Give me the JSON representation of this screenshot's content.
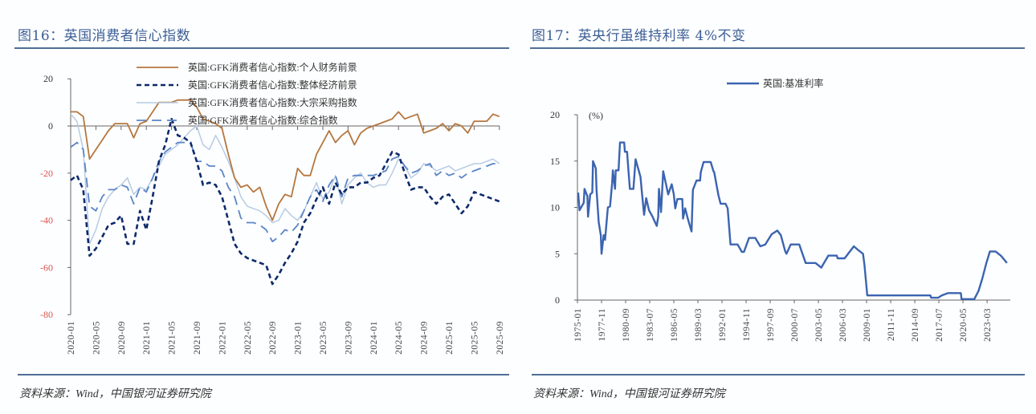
{
  "left": {
    "title": "图16：英国消费者信心指数",
    "source": "资料来源：Wind，中国银河证券研究院"
  },
  "right": {
    "title": "图17：英央行虽维持利率 4%不变",
    "source": "资料来源：Wind，中国银河证券研究院"
  },
  "chart_data": [
    {
      "type": "line",
      "title": "图16：英国消费者信心指数",
      "ylim": [
        -80,
        20
      ],
      "yticks": [
        "20",
        "0",
        "-20",
        "-40",
        "-60",
        "-80"
      ],
      "xticks": [
        "2020-01",
        "2020-05",
        "2020-09",
        "2021-01",
        "2021-05",
        "2021-09",
        "2022-01",
        "2022-05",
        "2022-09",
        "2023-01",
        "2023-05",
        "2023-09",
        "2024-01",
        "2024-05",
        "2024-09",
        "2025-01",
        "2025-05",
        "2025-09"
      ],
      "legend_position": "top",
      "x": [
        "2020-01",
        "2020-02",
        "2020-03",
        "2020-04",
        "2020-05",
        "2020-06",
        "2020-07",
        "2020-08",
        "2020-09",
        "2020-10",
        "2020-11",
        "2020-12",
        "2021-01",
        "2021-02",
        "2021-03",
        "2021-04",
        "2021-05",
        "2021-06",
        "2021-07",
        "2021-08",
        "2021-09",
        "2021-10",
        "2021-11",
        "2021-12",
        "2022-01",
        "2022-02",
        "2022-03",
        "2022-04",
        "2022-05",
        "2022-06",
        "2022-07",
        "2022-08",
        "2022-09",
        "2022-10",
        "2022-11",
        "2022-12",
        "2023-01",
        "2023-02",
        "2023-03",
        "2023-04",
        "2023-05",
        "2023-06",
        "2023-07",
        "2023-08",
        "2023-09",
        "2023-10",
        "2023-11",
        "2023-12",
        "2024-01",
        "2024-02",
        "2024-03",
        "2024-04",
        "2024-05",
        "2024-06",
        "2024-07",
        "2024-08",
        "2024-09",
        "2024-10",
        "2024-11",
        "2024-12",
        "2025-01",
        "2025-02",
        "2025-03",
        "2025-04",
        "2025-05",
        "2025-06",
        "2025-07",
        "2025-08",
        "2025-09"
      ],
      "series": [
        {
          "name": "英国:GFK消费者信心指数:个人财务前景",
          "color": "#b5773f",
          "style": "solid",
          "values": [
            6,
            6,
            4,
            -14,
            -10,
            -6,
            -2,
            1,
            1,
            1,
            -5,
            1,
            2,
            6,
            10,
            10,
            10,
            11,
            11,
            11,
            8,
            3,
            2,
            1,
            -1,
            -12,
            -22,
            -26,
            -25,
            -28,
            -26,
            -34,
            -40,
            -33,
            -29,
            -30,
            -18,
            -21,
            -21,
            -12,
            -7,
            -2,
            -7,
            -4,
            -2,
            -8,
            -3,
            -1,
            0,
            1,
            2,
            3,
            6,
            3,
            4,
            5,
            -3,
            -2,
            -1,
            1,
            -2,
            1,
            0,
            -3,
            2,
            2,
            2,
            5,
            4
          ]
        },
        {
          "name": "英国:GFK消费者信心指数:整体经济前景",
          "color": "#0d2a6b",
          "style": "dashed",
          "values": [
            -23,
            -21,
            -27,
            -55,
            -52,
            -47,
            -42,
            -41,
            -38,
            -50,
            -50,
            -36,
            -44,
            -30,
            -15,
            -8,
            3,
            -4,
            -5,
            -7,
            -15,
            -25,
            -24,
            -25,
            -30,
            -40,
            -50,
            -54,
            -56,
            -57,
            -58,
            -59,
            -67,
            -63,
            -58,
            -54,
            -49,
            -41,
            -37,
            -31,
            -26,
            -33,
            -24,
            -29,
            -26,
            -26,
            -24,
            -24,
            -22,
            -21,
            -16,
            -11,
            -12,
            -20,
            -27,
            -26,
            -26,
            -30,
            -33,
            -30,
            -29,
            -33,
            -37,
            -34,
            -28,
            -29,
            -30,
            -31,
            -32
          ]
        },
        {
          "name": "英国:GFK消费者信心指数:大宗采购指数",
          "color": "#b8cbe3",
          "style": "solid",
          "values": [
            5,
            2,
            -10,
            -50,
            -44,
            -35,
            -30,
            -27,
            -25,
            -22,
            -29,
            -26,
            -27,
            -22,
            -17,
            -12,
            -10,
            -8,
            -5,
            -2,
            0,
            -8,
            -10,
            -4,
            -9,
            -15,
            -22,
            -30,
            -34,
            -35,
            -36,
            -38,
            -41,
            -40,
            -35,
            -38,
            -40,
            -36,
            -30,
            -24,
            -31,
            -28,
            -21,
            -33,
            -25,
            -22,
            -20,
            -24,
            -26,
            -25,
            -25,
            -20,
            -14,
            -17,
            -22,
            -20,
            -16,
            -17,
            -19,
            -18,
            -17,
            -19,
            -18,
            -17,
            -16,
            -16,
            -15,
            -14,
            -16
          ]
        },
        {
          "name": "英国:GFK消费者信心指数:综合指数",
          "color": "#5b85c7",
          "style": "longdash",
          "values": [
            -9,
            -7,
            -10,
            -34,
            -36,
            -30,
            -27,
            -27,
            -25,
            -26,
            -33,
            -26,
            -28,
            -22,
            -15,
            -11,
            -9,
            -7,
            -7,
            -7,
            -15,
            -15,
            -17,
            -17,
            -19,
            -26,
            -30,
            -39,
            -41,
            -41,
            -42,
            -44,
            -49,
            -47,
            -44,
            -45,
            -42,
            -36,
            -30,
            -27,
            -32,
            -25,
            -21,
            -30,
            -22,
            -21,
            -21,
            -21,
            -21,
            -20,
            -19,
            -14,
            -13,
            -17,
            -20,
            -19,
            -17,
            -16,
            -21,
            -19,
            -21,
            -20,
            -22,
            -20,
            -19,
            -18,
            -17,
            -16,
            -16
          ]
        }
      ]
    },
    {
      "type": "line",
      "title": "图17：英央行虽维持利率 4%不变",
      "unit": "(%)",
      "ylim": [
        0,
        20
      ],
      "yticks": [
        "20",
        "15",
        "10",
        "5",
        "0"
      ],
      "xticks": [
        "1975-01",
        "1977-11",
        "1980-09",
        "1983-07",
        "1986-05",
        "1989-03",
        "1992-01",
        "1994-11",
        "1997-09",
        "2000-07",
        "2003-05",
        "2006-03",
        "2009-01",
        "2011-11",
        "2014-09",
        "2017-07",
        "2020-05",
        "2023-03"
      ],
      "legend_position": "top",
      "series": [
        {
          "name": "英国:基准利率",
          "color": "#3b64b0",
          "style": "solid",
          "points": [
            [
              "1975-02",
              11.6
            ],
            [
              "1975-04",
              9.7
            ],
            [
              "1975-10",
              10.5
            ],
            [
              "1975-11",
              12
            ],
            [
              "1976-03",
              11.2
            ],
            [
              "1976-04",
              9
            ],
            [
              "1976-07",
              11.4
            ],
            [
              "1976-10",
              11.6
            ],
            [
              "1976-11",
              15
            ],
            [
              "1977-03",
              14.2
            ],
            [
              "1977-04",
              11.9
            ],
            [
              "1977-07",
              8.4
            ],
            [
              "1977-10",
              7
            ],
            [
              "1977-11",
              5
            ],
            [
              "1978-02",
              7
            ],
            [
              "1978-04",
              6.5
            ],
            [
              "1978-08",
              10
            ],
            [
              "1978-11",
              10.1
            ],
            [
              "1979-02",
              12.6
            ],
            [
              "1979-03",
              14
            ],
            [
              "1979-06",
              12
            ],
            [
              "1979-07",
              14
            ],
            [
              "1979-11",
              14
            ],
            [
              "1980-01",
              17
            ],
            [
              "1980-07",
              17
            ],
            [
              "1980-08",
              16
            ],
            [
              "1980-11",
              16
            ],
            [
              "1981-01",
              14
            ],
            [
              "1981-03",
              12
            ],
            [
              "1981-08",
              12
            ],
            [
              "1981-11",
              15.2
            ],
            [
              "1982-06",
              13.3
            ],
            [
              "1982-08",
              11.6
            ],
            [
              "1982-11",
              9.2
            ],
            [
              "1983-02",
              11
            ],
            [
              "1983-06",
              9.7
            ],
            [
              "1983-11",
              9
            ],
            [
              "1984-05",
              8
            ],
            [
              "1984-07",
              9
            ],
            [
              "1984-08",
              12
            ],
            [
              "1984-11",
              9.5
            ],
            [
              "1985-02",
              13.9
            ],
            [
              "1985-06",
              12.5
            ],
            [
              "1985-09",
              11.4
            ],
            [
              "1986-02",
              12.5
            ],
            [
              "1986-05",
              11.4
            ],
            [
              "1986-07",
              9.9
            ],
            [
              "1986-10",
              10.9
            ],
            [
              "1987-05",
              10.9
            ],
            [
              "1987-06",
              8.8
            ],
            [
              "1987-09",
              9.9
            ],
            [
              "1988-01",
              8.7
            ],
            [
              "1988-06",
              7.4
            ],
            [
              "1988-08",
              11.9
            ],
            [
              "1989-01",
              12.9
            ],
            [
              "1989-06",
              12.9
            ],
            [
              "1989-07",
              13.8
            ],
            [
              "1989-11",
              14.9
            ],
            [
              "1990-09",
              14.9
            ],
            [
              "1991-01",
              13.9
            ],
            [
              "1991-02",
              13.8
            ],
            [
              "1991-08",
              11.3
            ],
            [
              "1991-11",
              10.4
            ],
            [
              "1992-06",
              10.4
            ],
            [
              "1992-09",
              9.9
            ],
            [
              "1993-01",
              6
            ],
            [
              "1993-11",
              6
            ],
            [
              "1994-05",
              5.2
            ],
            [
              "1994-08",
              5.2
            ],
            [
              "1995-03",
              6.7
            ],
            [
              "1995-12",
              6.7
            ],
            [
              "1996-07",
              5.8
            ],
            [
              "1997-02",
              6
            ],
            [
              "1997-11",
              7.1
            ],
            [
              "1998-07",
              7.5
            ],
            [
              "1998-12",
              7
            ],
            [
              "1999-06",
              5.3
            ],
            [
              "1999-08",
              5
            ],
            [
              "2000-02",
              6
            ],
            [
              "2001-02",
              6
            ],
            [
              "2001-11",
              4
            ],
            [
              "2003-01",
              4
            ],
            [
              "2003-09",
              3.5
            ],
            [
              "2004-07",
              4.8
            ],
            [
              "2005-07",
              4.8
            ],
            [
              "2005-08",
              4.5
            ],
            [
              "2006-06",
              4.5
            ],
            [
              "2007-07",
              5.8
            ],
            [
              "2008-01",
              5.4
            ],
            [
              "2008-08",
              5
            ],
            [
              "2008-10",
              3.8
            ],
            [
              "2009-02",
              0.5
            ],
            [
              "2016-07",
              0.5
            ],
            [
              "2016-08",
              0.25
            ],
            [
              "2017-06",
              0.25
            ],
            [
              "2017-11",
              0.5
            ],
            [
              "2018-08",
              0.75
            ],
            [
              "2020-02",
              0.75
            ],
            [
              "2020-03",
              0.1
            ],
            [
              "2021-09",
              0.1
            ],
            [
              "2022-03",
              1
            ],
            [
              "2022-08",
              2.25
            ],
            [
              "2023-02",
              4
            ],
            [
              "2023-07",
              5.25
            ],
            [
              "2024-03",
              5.25
            ],
            [
              "2024-11",
              4.75
            ],
            [
              "2025-07",
              4
            ]
          ]
        }
      ]
    }
  ]
}
